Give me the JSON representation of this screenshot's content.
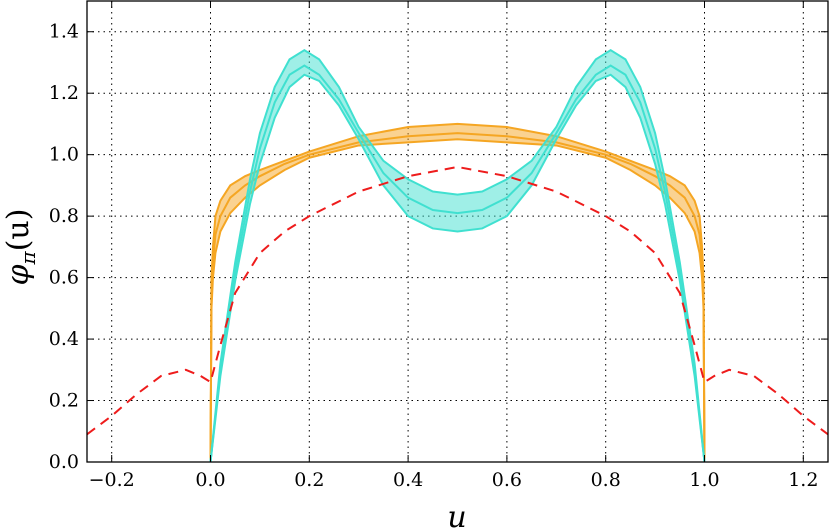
{
  "chart_data": {
    "type": "line",
    "xlabel": "u",
    "ylabel": "φπ(u)",
    "ylabel_main": "φ",
    "ylabel_sub": "π",
    "ylabel_arg": "(u)",
    "xlim": [
      -0.25,
      1.25
    ],
    "ylim": [
      0.0,
      1.5
    ],
    "xticks": [
      -0.2,
      0.0,
      0.2,
      0.4,
      0.6,
      0.8,
      1.0,
      1.2
    ],
    "xtick_labels": [
      "−0.2",
      "0.0",
      "0.2",
      "0.4",
      "0.6",
      "0.8",
      "1.0",
      "1.2"
    ],
    "yticks": [
      0.0,
      0.2,
      0.4,
      0.6,
      0.8,
      1.0,
      1.2,
      1.4
    ],
    "ytick_labels": [
      "0.0",
      "0.2",
      "0.4",
      "0.6",
      "0.8",
      "1.0",
      "1.2",
      "1.4"
    ],
    "grid": true,
    "series": [
      {
        "color": "#f5a623",
        "style": "band",
        "x": [
          0.0,
          0.002,
          0.005,
          0.01,
          0.02,
          0.04,
          0.07,
          0.1,
          0.15,
          0.2,
          0.3,
          0.4,
          0.5,
          0.6,
          0.7,
          0.8,
          0.85,
          0.9,
          0.93,
          0.96,
          0.98,
          0.99,
          0.995,
          0.998,
          1.0
        ],
        "center": [
          0.0,
          0.55,
          0.65,
          0.74,
          0.8,
          0.86,
          0.9,
          0.93,
          0.97,
          1.0,
          1.04,
          1.06,
          1.07,
          1.06,
          1.04,
          1.0,
          0.97,
          0.93,
          0.9,
          0.86,
          0.8,
          0.74,
          0.65,
          0.55,
          0.0
        ],
        "upper": [
          0.0,
          0.6,
          0.7,
          0.8,
          0.85,
          0.9,
          0.93,
          0.95,
          0.98,
          1.01,
          1.06,
          1.09,
          1.1,
          1.09,
          1.06,
          1.01,
          0.98,
          0.95,
          0.93,
          0.9,
          0.85,
          0.8,
          0.7,
          0.6,
          0.0
        ],
        "lower": [
          0.0,
          0.5,
          0.6,
          0.68,
          0.75,
          0.81,
          0.86,
          0.9,
          0.95,
          0.99,
          1.03,
          1.04,
          1.05,
          1.04,
          1.03,
          0.99,
          0.95,
          0.9,
          0.86,
          0.81,
          0.75,
          0.68,
          0.6,
          0.5,
          0.0
        ]
      },
      {
        "color": "#40e0d0",
        "style": "band",
        "x": [
          0.0,
          0.02,
          0.05,
          0.08,
          0.1,
          0.13,
          0.16,
          0.19,
          0.22,
          0.26,
          0.3,
          0.35,
          0.4,
          0.45,
          0.5,
          0.55,
          0.6,
          0.65,
          0.7,
          0.74,
          0.78,
          0.81,
          0.84,
          0.87,
          0.9,
          0.92,
          0.95,
          0.98,
          1.0
        ],
        "center": [
          0.0,
          0.3,
          0.62,
          0.88,
          1.02,
          1.17,
          1.26,
          1.29,
          1.26,
          1.18,
          1.07,
          0.94,
          0.86,
          0.82,
          0.81,
          0.82,
          0.86,
          0.94,
          1.07,
          1.18,
          1.26,
          1.29,
          1.26,
          1.17,
          1.02,
          0.88,
          0.62,
          0.3,
          0.0
        ],
        "upper": [
          0.0,
          0.32,
          0.65,
          0.92,
          1.07,
          1.22,
          1.31,
          1.34,
          1.31,
          1.22,
          1.09,
          0.98,
          0.92,
          0.88,
          0.87,
          0.88,
          0.92,
          0.98,
          1.09,
          1.22,
          1.31,
          1.34,
          1.31,
          1.22,
          1.07,
          0.92,
          0.65,
          0.32,
          0.0
        ],
        "lower": [
          0.0,
          0.28,
          0.59,
          0.84,
          0.97,
          1.12,
          1.22,
          1.26,
          1.24,
          1.16,
          1.05,
          0.9,
          0.8,
          0.76,
          0.75,
          0.76,
          0.8,
          0.9,
          1.05,
          1.16,
          1.24,
          1.26,
          1.22,
          1.12,
          0.97,
          0.84,
          0.59,
          0.28,
          0.0
        ]
      },
      {
        "color": "#ee1c1c",
        "style": "dashed",
        "x": [
          -0.25,
          -0.2,
          -0.15,
          -0.1,
          -0.05,
          -0.02,
          0.0,
          0.02,
          0.05,
          0.1,
          0.15,
          0.2,
          0.3,
          0.4,
          0.5,
          0.6,
          0.7,
          0.8,
          0.85,
          0.9,
          0.95,
          0.98,
          1.0,
          1.02,
          1.05,
          1.1,
          1.15,
          1.2,
          1.25
        ],
        "values": [
          0.09,
          0.15,
          0.22,
          0.28,
          0.3,
          0.28,
          0.26,
          0.38,
          0.55,
          0.68,
          0.75,
          0.8,
          0.88,
          0.93,
          0.96,
          0.93,
          0.88,
          0.8,
          0.75,
          0.68,
          0.55,
          0.38,
          0.26,
          0.28,
          0.3,
          0.28,
          0.22,
          0.15,
          0.09
        ]
      }
    ]
  }
}
